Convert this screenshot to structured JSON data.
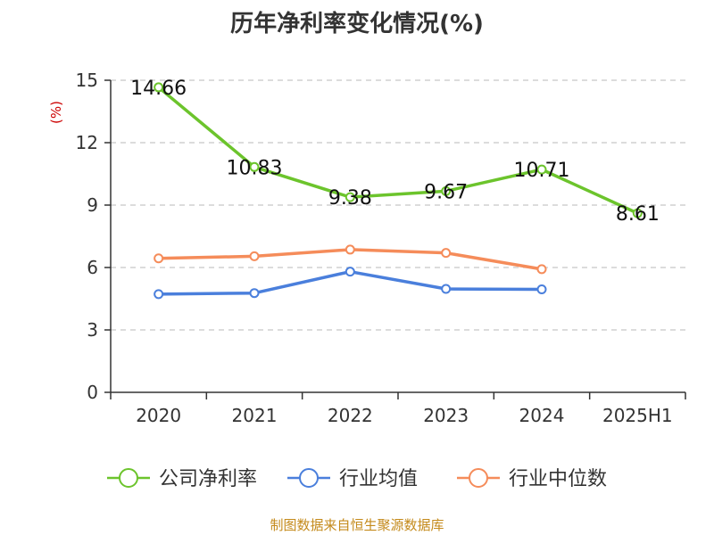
{
  "title": "历年净利率变化情况(%)",
  "source": "制图数据来自恒生聚源数据库",
  "colors": {
    "company": "#6cc42c",
    "industry_avg": "#4a7fdc",
    "industry_median": "#f58c5a",
    "axis": "#333333",
    "grid": "#c8c8c8",
    "ylabel": "#cc0000",
    "source": "#c48a1b"
  },
  "chart_data": {
    "type": "line",
    "title": "历年净利率变化情况(%)",
    "ylabel": "(%)",
    "xlabel": "",
    "categories": [
      "2020",
      "2021",
      "2022",
      "2023",
      "2024",
      "2025H1"
    ],
    "ylim": [
      0,
      15
    ],
    "yticks": [
      0,
      3,
      6,
      9,
      12,
      15
    ],
    "grid": true,
    "legend_position": "bottom",
    "series": [
      {
        "name": "公司净利率",
        "color_key": "company",
        "values": [
          14.66,
          10.83,
          9.38,
          9.67,
          10.71,
          8.61
        ],
        "show_labels": true
      },
      {
        "name": "行业均值",
        "color_key": "industry_avg",
        "values": [
          4.72,
          4.77,
          5.8,
          4.97,
          4.95,
          null
        ],
        "show_labels": false
      },
      {
        "name": "行业中位数",
        "color_key": "industry_median",
        "values": [
          6.44,
          6.54,
          6.86,
          6.7,
          5.92,
          null
        ],
        "show_labels": false
      }
    ]
  }
}
